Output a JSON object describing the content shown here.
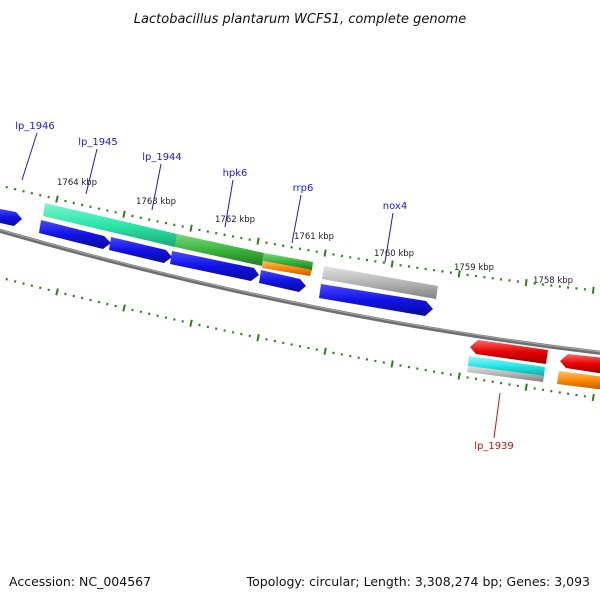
{
  "title": "Lactobacillus plantarum WCFS1, complete genome",
  "footer": {
    "accession": "Accession: NC_004567",
    "summary": "Topology: circular; Length: 3,308,274 bp; Genes: 3,093"
  },
  "colors": {
    "backbone": "#6f6f6f",
    "tick": "#2e7d1e",
    "label_forward": "#1a1acc",
    "label_reverse": "#cc1111",
    "blue": "#1212e6",
    "teal": "#2be6a8",
    "green": "#3cb43c",
    "orange": "#ff8800",
    "gray": "#b5b5b5",
    "red": "#e60000",
    "cyan": "#22e8e8"
  },
  "ticks": [
    "1764 kbp",
    "1763 kbp",
    "1762 kbp",
    "1761 kbp",
    "1760 kbp",
    "1759 kbp",
    "1758 kbp"
  ],
  "gene_labels_forward": [
    "lp_1946",
    "lp_1945",
    "lp_1944",
    "hpk6",
    "rrp6",
    "nox4"
  ],
  "gene_labels_reverse": [
    "lp_1939"
  ],
  "features": [
    {
      "id": "f-blue-left",
      "color": "blue",
      "icon": "arrow-right"
    },
    {
      "id": "f-teal",
      "color": "teal",
      "icon": "bar"
    },
    {
      "id": "f-green",
      "color": "green",
      "icon": "bar"
    },
    {
      "id": "f-green-small",
      "color": "green",
      "icon": "bar"
    },
    {
      "id": "f-orange-small",
      "color": "orange",
      "icon": "bar"
    },
    {
      "id": "f-gray",
      "color": "gray",
      "icon": "bar"
    },
    {
      "id": "f-blue-1",
      "color": "blue",
      "icon": "arrow-right"
    },
    {
      "id": "f-blue-2",
      "color": "blue",
      "icon": "arrow-right"
    },
    {
      "id": "f-blue-3",
      "color": "blue",
      "icon": "arrow-right"
    },
    {
      "id": "f-blue-4",
      "color": "blue",
      "icon": "arrow-right"
    },
    {
      "id": "f-blue-5",
      "color": "blue",
      "icon": "arrow-right"
    },
    {
      "id": "f-red-1",
      "color": "red",
      "icon": "arrow-left"
    },
    {
      "id": "f-red-2",
      "color": "red",
      "icon": "arrow-left"
    },
    {
      "id": "f-cyan",
      "color": "cyan",
      "icon": "bar"
    },
    {
      "id": "f-gray-2",
      "color": "gray",
      "icon": "bar"
    },
    {
      "id": "f-orange-2",
      "color": "orange",
      "icon": "bar"
    }
  ]
}
